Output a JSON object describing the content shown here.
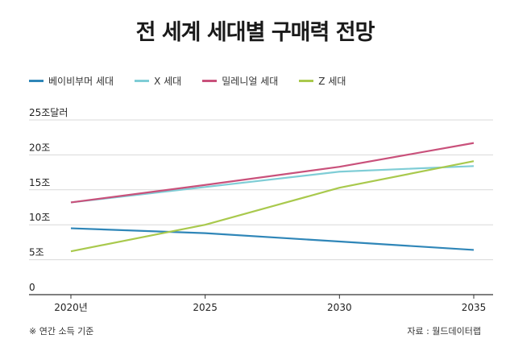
{
  "chart_data": {
    "type": "line",
    "title": "전 세계 세대별 구매력 전망",
    "x": [
      2020,
      2025,
      2030,
      2035
    ],
    "x_tick_labels": [
      "2020년",
      "2025",
      "2030",
      "2035"
    ],
    "y_tick_labels": [
      "0",
      "5조",
      "10조",
      "15조",
      "20조",
      "25조달러"
    ],
    "ylim": [
      0,
      25
    ],
    "ylabel": "달러",
    "grid": true,
    "legend_position": "top-left",
    "series": [
      {
        "name": "베이비부머 세대",
        "color": "#2f86b8",
        "values": [
          9.5,
          8.8,
          7.6,
          6.4
        ]
      },
      {
        "name": "X 세대",
        "color": "#7fcdd6",
        "values": [
          13.2,
          15.4,
          17.6,
          18.4
        ]
      },
      {
        "name": "밀레니얼 세대",
        "color": "#c9517b",
        "values": [
          13.2,
          15.7,
          18.3,
          21.7
        ]
      },
      {
        "name": "Z 세대",
        "color": "#a9c94d",
        "values": [
          6.2,
          10.0,
          15.3,
          19.1
        ]
      }
    ]
  },
  "footnote": "※ 연간 소득 기준",
  "source": "자료 : 월드데이터랩"
}
